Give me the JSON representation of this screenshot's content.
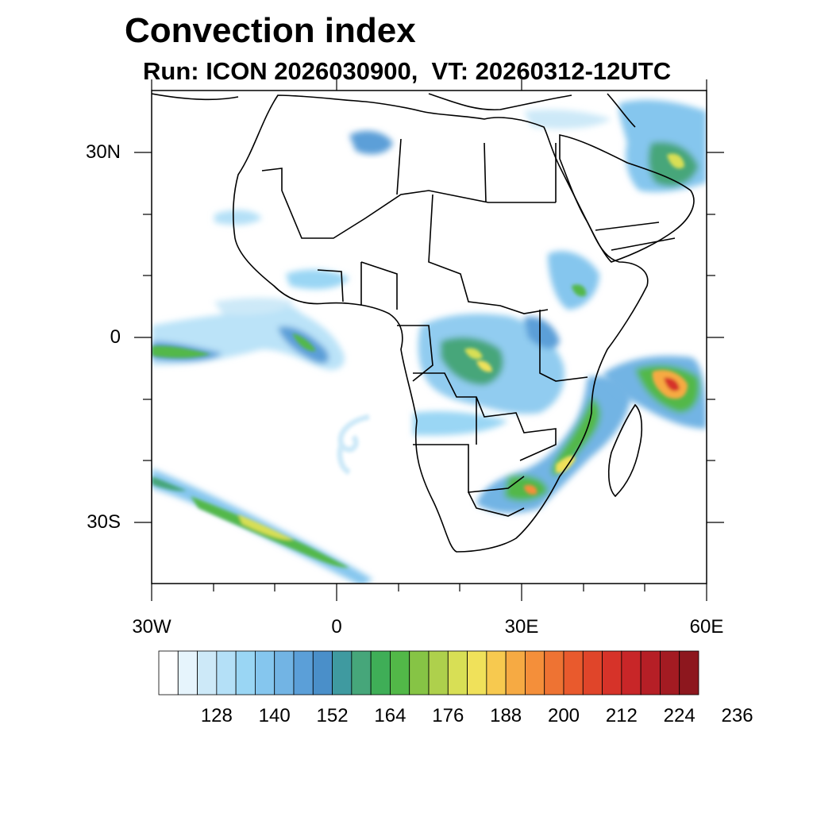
{
  "title": "Convection index",
  "subtitle": "Run: ICON 2026030900,  VT: 20260312-12UTC",
  "map": {
    "lat_labels": [
      "30N",
      "0",
      "30S"
    ],
    "lon_labels": [
      "30W",
      "0",
      "30E",
      "60E"
    ],
    "lon_range": [
      -30,
      60
    ],
    "lat_range": [
      -40,
      40
    ]
  },
  "colorbar": {
    "labels": [
      "128",
      "140",
      "152",
      "164",
      "176",
      "188",
      "200",
      "212",
      "224",
      "236"
    ],
    "colors": [
      "#ffffff",
      "#e6f4fc",
      "#cde9f8",
      "#b4e0f7",
      "#9ad6f4",
      "#85c6ee",
      "#72b4e4",
      "#5b9fd8",
      "#4a8fc9",
      "#3f9aa0",
      "#46a67a",
      "#3fae57",
      "#52b848",
      "#86c445",
      "#aed04c",
      "#d8df55",
      "#f0e15a",
      "#f7c94f",
      "#f6aa43",
      "#f48f3a",
      "#ee7333",
      "#e95a2d",
      "#e0452a",
      "#d63329",
      "#c82628",
      "#b61f26",
      "#a31b22",
      "#8d171e"
    ]
  }
}
